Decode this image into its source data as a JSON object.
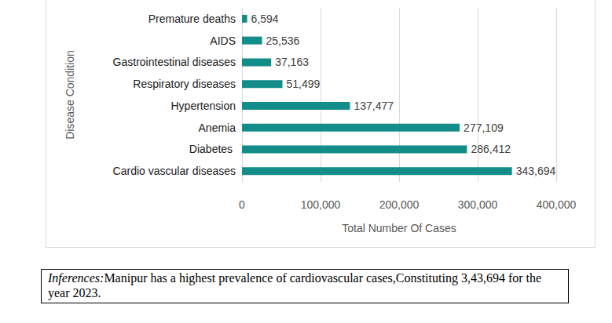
{
  "chart_data": {
    "type": "bar",
    "orientation": "horizontal",
    "categories": [
      "Premature deaths",
      "AIDS",
      "Gastrointestinal diseases",
      "Respiratory diseases",
      "Hypertension",
      "Anemia",
      "Diabetes ",
      "Cardio vascular diseases"
    ],
    "values": [
      6594,
      25536,
      37163,
      51499,
      137477,
      277109,
      286412,
      343694
    ],
    "value_labels": [
      "6,594",
      "25,536",
      "37,163",
      "51,499",
      "137,477",
      "277,109",
      "286,412",
      "343,694"
    ],
    "color": "#138d8a",
    "x_label": "Total Number Of Cases",
    "y_label": "Disease Condition",
    "xlim": [
      0,
      400000
    ],
    "xticks": [
      0,
      {
        "value": 100000,
        "label": "100,000"
      },
      {
        "value": 200000,
        "label": "200,000"
      },
      {
        "value": 300000,
        "label": "300,000"
      },
      {
        "value": 400000,
        "label": "400,000"
      }
    ],
    "grid": true,
    "data_labels": true,
    "annotations": [
      "Inferences:",
      "Manipur has a highest prevalence of cardiovascular cases,Constituting 3,43,694 for the year 2023."
    ]
  }
}
